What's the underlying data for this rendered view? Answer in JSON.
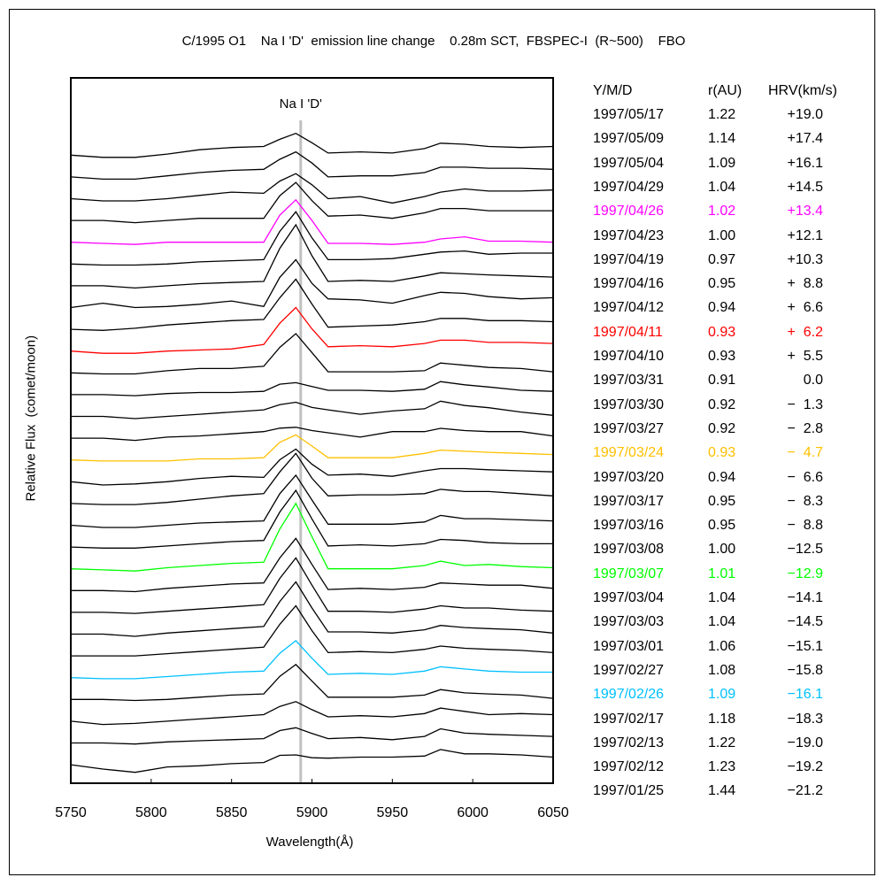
{
  "chart_data": {
    "type": "line",
    "title": "C/1995 O1    Na I 'D'  emission line change    0.28m SCT,  FBSPEC-I  (R~500)    FBO",
    "xlabel": "Wavelength(Å)",
    "ylabel": "Relative Flux  (comet/moon)",
    "xlim": [
      5750,
      6050
    ],
    "ylim": [
      0,
      32.4
    ],
    "xticks": [
      5750,
      5800,
      5850,
      5900,
      5950,
      6000,
      6050
    ],
    "grid": false,
    "annotation": {
      "label": "Na I 'D'",
      "wavelength": 5893,
      "color": "#c0c0c0"
    },
    "offset_step": 1.0,
    "x": [
      5750,
      5770,
      5790,
      5810,
      5830,
      5850,
      5870,
      5880,
      5890,
      5900,
      5910,
      5930,
      5950,
      5970,
      5980,
      5995,
      6010,
      6030,
      6050
    ],
    "series": [
      {
        "name": "1997/05/17",
        "color": "#000000",
        "values": [
          0,
          -0.1,
          -0.1,
          0.05,
          0.25,
          0.35,
          0.4,
          0.73,
          1.0,
          0.57,
          0.1,
          0.15,
          0.1,
          0.3,
          0.55,
          0.5,
          0.4,
          0.35,
          0.4
        ]
      },
      {
        "name": "1997/05/09",
        "color": "#000000",
        "values": [
          0,
          -0.1,
          -0.1,
          0.05,
          0.2,
          0.3,
          0.35,
          0.81,
          1.15,
          0.64,
          0.0,
          0.05,
          0.05,
          0.2,
          0.45,
          0.45,
          0.4,
          0.4,
          0.35
        ]
      },
      {
        "name": "1997/05/04",
        "color": "#000000",
        "values": [
          0,
          -0.1,
          -0.1,
          0.0,
          0.15,
          0.3,
          0.25,
          0.81,
          1.15,
          0.64,
          0.0,
          0.1,
          -0.2,
          0.1,
          0.3,
          0.45,
          0.35,
          0.35,
          0.4
        ]
      },
      {
        "name": "1997/04/29",
        "color": "#000000",
        "values": [
          0,
          0.0,
          -0.1,
          0.0,
          0.1,
          0.1,
          0.1,
          1.14,
          1.75,
          0.91,
          0.2,
          0.25,
          0.1,
          0.35,
          0.55,
          0.55,
          0.45,
          0.45,
          0.45
        ]
      },
      {
        "name": "1997/04/26",
        "color": "#ff00ff",
        "values": [
          0,
          -0.05,
          -0.1,
          0.0,
          0.0,
          0.0,
          0.0,
          1.25,
          1.95,
          1.0,
          -0.05,
          -0.05,
          -0.1,
          0.0,
          0.15,
          0.25,
          0.05,
          0.05,
          0.0
        ]
      },
      {
        "name": "1997/04/23",
        "color": "#000000",
        "values": [
          0,
          -0.05,
          -0.05,
          0.0,
          0.1,
          0.15,
          0.2,
          1.5,
          2.4,
          1.2,
          0.2,
          0.2,
          0.25,
          0.45,
          0.55,
          0.6,
          0.45,
          0.5,
          0.5
        ]
      },
      {
        "name": "1997/04/19",
        "color": "#000000",
        "values": [
          0,
          0.0,
          -0.1,
          0.0,
          0.1,
          0.15,
          0.2,
          1.72,
          2.8,
          1.38,
          0.2,
          0.25,
          0.2,
          0.45,
          0.6,
          0.55,
          0.5,
          0.45,
          0.4
        ]
      },
      {
        "name": "1997/04/16",
        "color": "#000000",
        "values": [
          0,
          0.2,
          0.0,
          0.05,
          0.15,
          0.3,
          0.05,
          1.39,
          2.2,
          1.11,
          0.4,
          0.35,
          0.2,
          0.55,
          0.7,
          0.65,
          0.5,
          0.4,
          0.45
        ]
      },
      {
        "name": "1997/04/12",
        "color": "#000000",
        "values": [
          0,
          -0.05,
          0.05,
          0.2,
          0.3,
          0.4,
          0.45,
          1.45,
          2.3,
          1.16,
          0.1,
          0.15,
          0.2,
          0.35,
          0.5,
          0.5,
          0.4,
          0.4,
          0.35
        ]
      },
      {
        "name": "1997/04/11",
        "color": "#ff0000",
        "values": [
          0,
          -0.1,
          -0.1,
          0.0,
          0.05,
          0.1,
          0.3,
          1.28,
          2.0,
          1.02,
          0.2,
          0.25,
          0.2,
          0.35,
          0.5,
          0.5,
          0.4,
          0.4,
          0.35
        ]
      },
      {
        "name": "1997/04/10",
        "color": "#000000",
        "values": [
          0,
          -0.05,
          -0.05,
          0.1,
          0.2,
          0.2,
          0.3,
          1.17,
          1.8,
          0.93,
          0.05,
          0.05,
          0.05,
          0.1,
          0.45,
          0.35,
          0.25,
          0.2,
          0.05
        ]
      },
      {
        "name": "1997/03/31",
        "color": "#000000",
        "values": [
          0,
          0.0,
          -0.05,
          0.05,
          0.1,
          0.1,
          0.15,
          0.48,
          0.55,
          0.37,
          0.2,
          0.2,
          0.15,
          0.25,
          0.6,
          0.45,
          0.35,
          0.2,
          0.15
        ]
      },
      {
        "name": "1997/03/30",
        "color": "#000000",
        "values": [
          0,
          0.0,
          -0.1,
          0.0,
          0.1,
          0.2,
          0.3,
          0.54,
          0.65,
          0.41,
          0.3,
          0.1,
          0.25,
          0.35,
          0.7,
          0.5,
          0.4,
          0.2,
          0.05
        ]
      },
      {
        "name": "1997/03/27",
        "color": "#000000",
        "values": [
          0,
          0.0,
          -0.1,
          0.05,
          0.1,
          0.2,
          0.3,
          0.46,
          0.5,
          0.35,
          0.25,
          0.05,
          0.3,
          0.3,
          0.45,
          0.35,
          0.3,
          0.3,
          0.1
        ]
      },
      {
        "name": "1997/03/24",
        "color": "#ffc000",
        "values": [
          0,
          -0.05,
          -0.05,
          -0.05,
          0.05,
          0.05,
          0.1,
          0.81,
          1.15,
          0.64,
          0.1,
          0.1,
          0.1,
          0.3,
          0.45,
          0.4,
          0.35,
          0.3,
          0.25
        ]
      },
      {
        "name": "1997/03/20",
        "color": "#000000",
        "values": [
          0,
          -0.15,
          -0.1,
          0.0,
          0.15,
          0.25,
          0.2,
          1.01,
          1.5,
          0.8,
          0.3,
          0.35,
          0.25,
          0.5,
          0.6,
          0.6,
          0.55,
          0.5,
          0.45
        ]
      },
      {
        "name": "1997/03/17",
        "color": "#000000",
        "values": [
          0,
          -0.05,
          -0.05,
          0.05,
          0.2,
          0.35,
          0.45,
          1.45,
          2.3,
          1.16,
          0.35,
          0.4,
          0.4,
          0.45,
          0.65,
          0.55,
          0.55,
          0.45,
          0.35
        ]
      },
      {
        "name": "1997/03/16",
        "color": "#000000",
        "values": [
          0,
          -0.1,
          -0.1,
          0.0,
          0.1,
          0.15,
          0.2,
          1.45,
          2.3,
          1.16,
          0.05,
          0.05,
          0.05,
          0.15,
          0.45,
          0.3,
          0.3,
          0.25,
          0.2
        ]
      },
      {
        "name": "1997/03/08",
        "color": "#000000",
        "values": [
          0,
          -0.05,
          -0.05,
          0.05,
          0.15,
          0.25,
          0.3,
          1.61,
          2.6,
          1.29,
          0.05,
          0.1,
          0.05,
          0.15,
          0.35,
          0.3,
          0.2,
          0.15,
          0.15
        ]
      },
      {
        "name": "1997/03/07",
        "color": "#00ff00",
        "values": [
          0,
          -0.05,
          -0.1,
          0.05,
          0.15,
          0.25,
          0.3,
          1.83,
          3.0,
          1.47,
          0.0,
          0.0,
          0.0,
          0.15,
          0.35,
          0.15,
          0.2,
          0.1,
          0.05
        ]
      },
      {
        "name": "1997/03/04",
        "color": "#000000",
        "values": [
          0,
          0.0,
          -0.05,
          0.1,
          0.2,
          0.3,
          0.35,
          1.5,
          2.4,
          1.2,
          0.05,
          0.1,
          0.05,
          0.15,
          0.35,
          0.3,
          0.25,
          0.25,
          0.1
        ]
      },
      {
        "name": "1997/03/03",
        "color": "#000000",
        "values": [
          0,
          0.0,
          -0.05,
          0.05,
          0.15,
          0.25,
          0.35,
          1.56,
          2.5,
          1.25,
          0.05,
          0.05,
          0.0,
          0.15,
          0.3,
          0.2,
          0.2,
          0.1,
          0.05
        ]
      },
      {
        "name": "1997/03/01",
        "color": "#000000",
        "values": [
          0,
          0.0,
          -0.1,
          0.05,
          0.15,
          0.25,
          0.35,
          1.5,
          2.4,
          1.2,
          0.1,
          0.1,
          0.05,
          0.2,
          0.4,
          0.3,
          0.25,
          0.2,
          0.05
        ]
      },
      {
        "name": "1997/02/27",
        "color": "#000000",
        "values": [
          0,
          0.0,
          0.0,
          0.1,
          0.2,
          0.3,
          0.4,
          1.45,
          2.3,
          1.16,
          0.15,
          0.2,
          0.15,
          0.3,
          0.45,
          0.35,
          0.3,
          0.25,
          0.15
        ]
      },
      {
        "name": "1997/02/26",
        "color": "#00c0ff",
        "values": [
          0,
          -0.05,
          -0.05,
          0.05,
          0.15,
          0.25,
          0.3,
          1.12,
          1.7,
          0.89,
          0.15,
          0.2,
          0.15,
          0.3,
          0.5,
          0.4,
          0.3,
          0.25,
          0.25
        ]
      },
      {
        "name": "1997/02/17",
        "color": "#000000",
        "values": [
          0,
          0.0,
          -0.05,
          0.0,
          0.1,
          0.2,
          0.25,
          1.06,
          1.6,
          0.84,
          0.1,
          0.1,
          0.1,
          0.2,
          0.45,
          0.3,
          0.25,
          0.2,
          0.05
        ]
      },
      {
        "name": "1997/02/13",
        "color": "#000000",
        "values": [
          0,
          -0.15,
          -0.1,
          0.0,
          0.1,
          0.2,
          0.3,
          0.68,
          0.9,
          0.53,
          0.2,
          0.25,
          0.2,
          0.35,
          0.6,
          0.45,
          0.3,
          0.35,
          0.3
        ]
      },
      {
        "name": "1997/02/12",
        "color": "#000000",
        "values": [
          0,
          0.0,
          -0.05,
          0.05,
          0.1,
          0.15,
          0.2,
          0.57,
          0.7,
          0.44,
          0.2,
          0.25,
          0.15,
          0.3,
          0.65,
          0.45,
          0.4,
          0.35,
          0.3
        ]
      },
      {
        "name": "1997/01/25",
        "color": "#000000",
        "values": [
          0,
          -0.2,
          -0.35,
          -0.1,
          -0.05,
          0.05,
          0.1,
          0.43,
          0.45,
          0.32,
          0.3,
          0.35,
          0.35,
          0.4,
          0.7,
          0.5,
          0.5,
          0.45,
          0.35
        ]
      }
    ]
  },
  "table": {
    "headers": {
      "date": "Y/M/D",
      "r": "r(AU)",
      "hrv": "HRV(km/s)"
    },
    "rows": [
      {
        "date": "1997/05/17",
        "r": "1.22",
        "hrv": "+19.0",
        "color": "#000000"
      },
      {
        "date": "1997/05/09",
        "r": "1.14",
        "hrv": "+17.4",
        "color": "#000000"
      },
      {
        "date": "1997/05/04",
        "r": "1.09",
        "hrv": "+16.1",
        "color": "#000000"
      },
      {
        "date": "1997/04/29",
        "r": "1.04",
        "hrv": "+14.5",
        "color": "#000000"
      },
      {
        "date": "1997/04/26",
        "r": "1.02",
        "hrv": "+13.4",
        "color": "#ff00ff"
      },
      {
        "date": "1997/04/23",
        "r": "1.00",
        "hrv": "+12.1",
        "color": "#000000"
      },
      {
        "date": "1997/04/19",
        "r": "0.97",
        "hrv": "+10.3",
        "color": "#000000"
      },
      {
        "date": "1997/04/16",
        "r": "0.95",
        "hrv": "+  8.8",
        "color": "#000000"
      },
      {
        "date": "1997/04/12",
        "r": "0.94",
        "hrv": "+  6.6",
        "color": "#000000"
      },
      {
        "date": "1997/04/11",
        "r": "0.93",
        "hrv": "+  6.2",
        "color": "#ff0000"
      },
      {
        "date": "1997/04/10",
        "r": "0.93",
        "hrv": "+  5.5",
        "color": "#000000"
      },
      {
        "date": "1997/03/31",
        "r": "0.91",
        "hrv": "0.0",
        "color": "#000000"
      },
      {
        "date": "1997/03/30",
        "r": "0.92",
        "hrv": "−  1.3",
        "color": "#000000"
      },
      {
        "date": "1997/03/27",
        "r": "0.92",
        "hrv": "−  2.8",
        "color": "#000000"
      },
      {
        "date": "1997/03/24",
        "r": "0.93",
        "hrv": "−  4.7",
        "color": "#ffc000"
      },
      {
        "date": "1997/03/20",
        "r": "0.94",
        "hrv": "−  6.6",
        "color": "#000000"
      },
      {
        "date": "1997/03/17",
        "r": "0.95",
        "hrv": "−  8.3",
        "color": "#000000"
      },
      {
        "date": "1997/03/16",
        "r": "0.95",
        "hrv": "−  8.8",
        "color": "#000000"
      },
      {
        "date": "1997/03/08",
        "r": "1.00",
        "hrv": "−12.5",
        "color": "#000000"
      },
      {
        "date": "1997/03/07",
        "r": "1.01",
        "hrv": "−12.9",
        "color": "#00ff00"
      },
      {
        "date": "1997/03/04",
        "r": "1.04",
        "hrv": "−14.1",
        "color": "#000000"
      },
      {
        "date": "1997/03/03",
        "r": "1.04",
        "hrv": "−14.5",
        "color": "#000000"
      },
      {
        "date": "1997/03/01",
        "r": "1.06",
        "hrv": "−15.1",
        "color": "#000000"
      },
      {
        "date": "1997/02/27",
        "r": "1.08",
        "hrv": "−15.8",
        "color": "#000000"
      },
      {
        "date": "1997/02/26",
        "r": "1.09",
        "hrv": "−16.1",
        "color": "#00c0ff"
      },
      {
        "date": "1997/02/17",
        "r": "1.18",
        "hrv": "−18.3",
        "color": "#000000"
      },
      {
        "date": "1997/02/13",
        "r": "1.22",
        "hrv": "−19.0",
        "color": "#000000"
      },
      {
        "date": "1997/02/12",
        "r": "1.23",
        "hrv": "−19.2",
        "color": "#000000"
      },
      {
        "date": "1997/01/25",
        "r": "1.44",
        "hrv": "−21.2",
        "color": "#000000"
      }
    ]
  }
}
